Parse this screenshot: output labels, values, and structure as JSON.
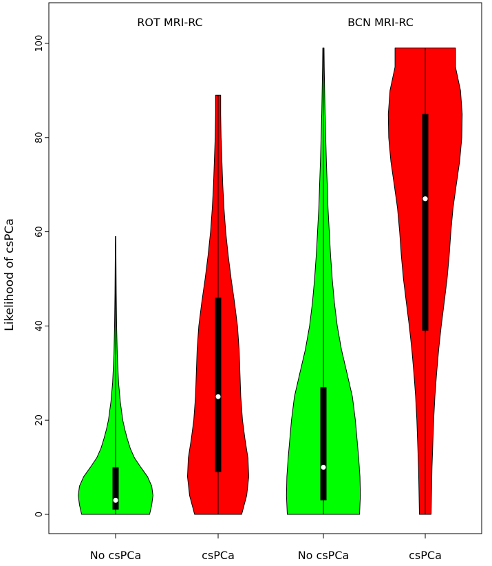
{
  "chart_data": {
    "type": "violin",
    "ylabel": "Likelihood of csPCa",
    "ylim": [
      0,
      100
    ],
    "yticks": [
      0,
      20,
      40,
      60,
      80,
      100
    ],
    "group_titles": [
      "ROT MRI-RC",
      "BCN MRI-RC"
    ],
    "categories": [
      "No csPCa",
      "csPCa",
      "No csPCa",
      "csPCa"
    ],
    "violins": [
      {
        "group": "ROT MRI-RC",
        "category": "No csPCa",
        "color": "#00ff00",
        "min": 0,
        "q1": 1,
        "median": 3,
        "q3": 10,
        "max": 22,
        "whisker_top": 59,
        "density": [
          [
            0,
            0.81
          ],
          [
            2,
            0.86
          ],
          [
            4,
            0.89
          ],
          [
            6,
            0.86
          ],
          [
            8,
            0.76
          ],
          [
            10,
            0.6
          ],
          [
            12,
            0.45
          ],
          [
            14,
            0.35
          ],
          [
            16,
            0.28
          ],
          [
            18,
            0.22
          ],
          [
            20,
            0.17
          ],
          [
            24,
            0.11
          ],
          [
            28,
            0.07
          ],
          [
            34,
            0.04
          ],
          [
            40,
            0.025
          ],
          [
            47,
            0.015
          ],
          [
            53,
            0.01
          ],
          [
            59,
            0.005
          ]
        ]
      },
      {
        "group": "ROT MRI-RC",
        "category": "csPCa",
        "color": "#ff0000",
        "min": 0,
        "q1": 9,
        "median": 25,
        "q3": 46,
        "max": 89,
        "density": [
          [
            0,
            0.56
          ],
          [
            4,
            0.68
          ],
          [
            8,
            0.73
          ],
          [
            12,
            0.71
          ],
          [
            16,
            0.64
          ],
          [
            20,
            0.58
          ],
          [
            25,
            0.54
          ],
          [
            30,
            0.52
          ],
          [
            35,
            0.5
          ],
          [
            40,
            0.46
          ],
          [
            45,
            0.39
          ],
          [
            50,
            0.31
          ],
          [
            55,
            0.24
          ],
          [
            60,
            0.18
          ],
          [
            65,
            0.14
          ],
          [
            70,
            0.11
          ],
          [
            75,
            0.09
          ],
          [
            80,
            0.07
          ],
          [
            85,
            0.06
          ],
          [
            89,
            0.06
          ]
        ]
      },
      {
        "group": "BCN MRI-RC",
        "category": "No csPCa",
        "color": "#00ff00",
        "min": 0,
        "q1": 3,
        "median": 10,
        "q3": 27,
        "max": 62,
        "whisker_top": 99,
        "density": [
          [
            0,
            0.86
          ],
          [
            4,
            0.88
          ],
          [
            8,
            0.87
          ],
          [
            12,
            0.84
          ],
          [
            16,
            0.8
          ],
          [
            20,
            0.76
          ],
          [
            25,
            0.69
          ],
          [
            30,
            0.56
          ],
          [
            35,
            0.43
          ],
          [
            40,
            0.33
          ],
          [
            45,
            0.26
          ],
          [
            50,
            0.21
          ],
          [
            55,
            0.17
          ],
          [
            60,
            0.14
          ],
          [
            65,
            0.11
          ],
          [
            70,
            0.09
          ],
          [
            75,
            0.07
          ],
          [
            80,
            0.055
          ],
          [
            85,
            0.04
          ],
          [
            90,
            0.03
          ],
          [
            95,
            0.02
          ],
          [
            99,
            0.015
          ]
        ]
      },
      {
        "group": "BCN MRI-RC",
        "category": "csPCa",
        "color": "#ff0000",
        "min": 0,
        "q1": 39,
        "median": 67,
        "q3": 85,
        "max": 99,
        "density": [
          [
            0,
            0.14
          ],
          [
            5,
            0.15
          ],
          [
            10,
            0.16
          ],
          [
            15,
            0.18
          ],
          [
            20,
            0.2
          ],
          [
            25,
            0.23
          ],
          [
            30,
            0.27
          ],
          [
            35,
            0.32
          ],
          [
            40,
            0.38
          ],
          [
            45,
            0.45
          ],
          [
            50,
            0.52
          ],
          [
            55,
            0.57
          ],
          [
            60,
            0.61
          ],
          [
            65,
            0.66
          ],
          [
            70,
            0.74
          ],
          [
            75,
            0.82
          ],
          [
            80,
            0.87
          ],
          [
            85,
            0.88
          ],
          [
            90,
            0.84
          ],
          [
            95,
            0.72
          ],
          [
            99,
            0.72
          ]
        ]
      }
    ],
    "grid": false,
    "legend": "none"
  }
}
